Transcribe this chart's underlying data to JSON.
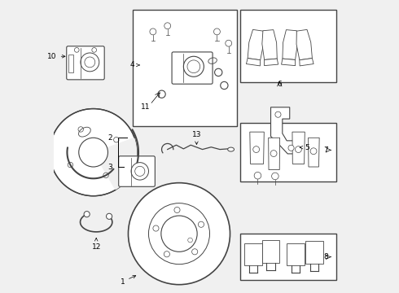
{
  "bg_color": "#f0f0f0",
  "line_color": "#444444",
  "white": "#ffffff"
}
